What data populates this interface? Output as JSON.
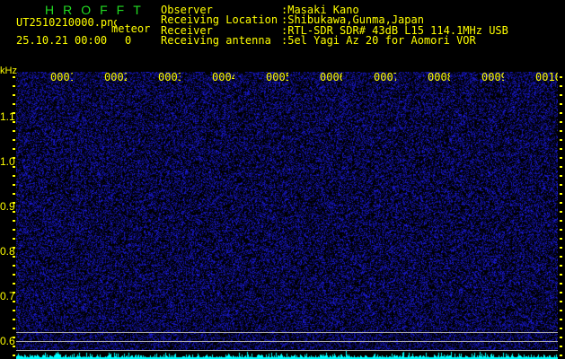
{
  "header": {
    "title": "HROFFT",
    "filename": "UT2510210000.png",
    "mode": "meteor",
    "datetime": "25.10.21 00:00",
    "count": "0",
    "info": [
      {
        "label": "Observer",
        "value": ":Masaki Kano"
      },
      {
        "label": "Receiving Location",
        "value": ":Shibukawa,Gunma,Japan"
      },
      {
        "label": "Receiver",
        "value": ":RTL-SDR SDR# 43dB L15 114.1MHz USB"
      },
      {
        "label": "Receiving antenna",
        "value": ":5el Yagi Az 20 for Aomori VOR"
      }
    ]
  },
  "axis": {
    "unit": "kHz",
    "y_labels": [
      "1.1",
      "1.0",
      "0.9",
      "0.8",
      "0.7",
      "0.6"
    ],
    "time_labels": [
      "0001",
      "0002",
      "0003",
      "0004",
      "0005",
      "0006",
      "0007",
      "0008",
      "0009",
      "0010"
    ]
  },
  "colors": {
    "text": "#ffff00",
    "title": "#22dd22",
    "noise": "#2020ff",
    "spectrum": "#00ffff",
    "lines": "#aaaaaa"
  }
}
